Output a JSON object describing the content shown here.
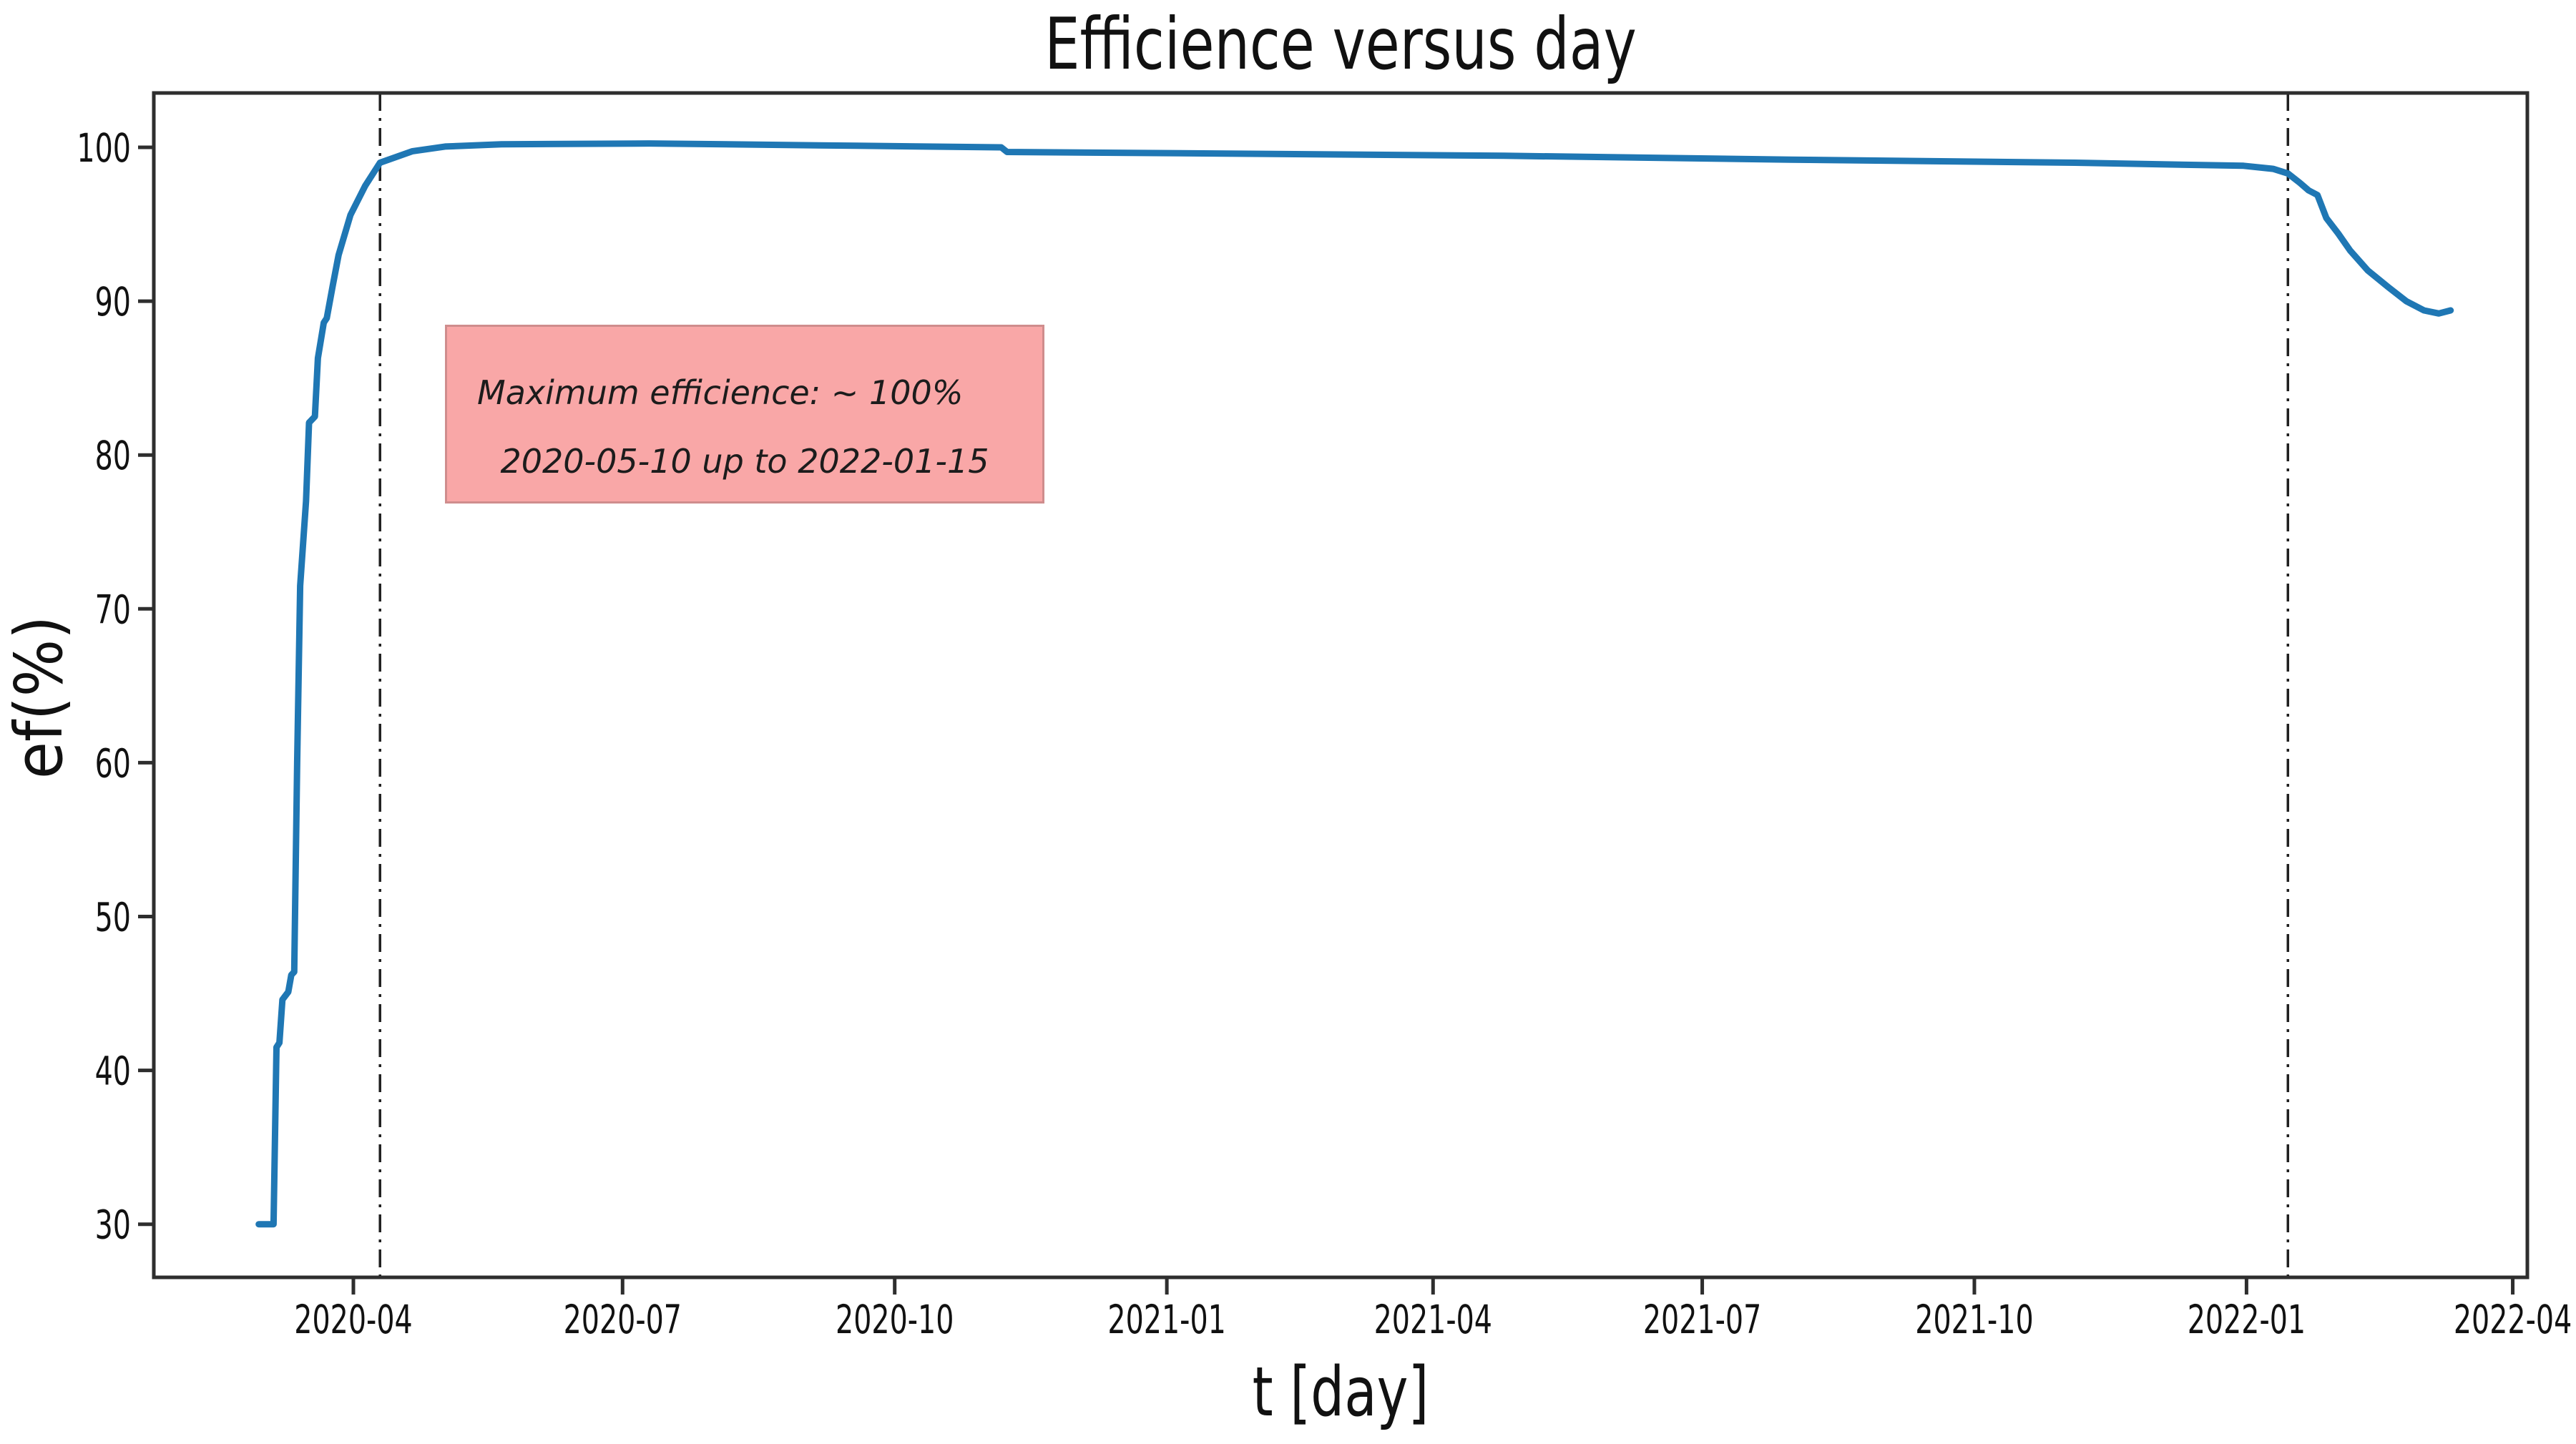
{
  "chart_data": {
    "type": "line",
    "title": "Efficience versus day",
    "xlabel": "t [day]",
    "ylabel": "ef(%)",
    "grid": false,
    "legend": "none",
    "ylim": [
      26.5,
      103.5
    ],
    "xlim": [
      "2020-01-25",
      "2022-04-08"
    ],
    "y_ticks": [
      30,
      40,
      50,
      60,
      70,
      80,
      90,
      100
    ],
    "x_ticks": [
      {
        "label": "2020-04",
        "date": "2020-04-01"
      },
      {
        "label": "2020-07",
        "date": "2020-07-01"
      },
      {
        "label": "2020-10",
        "date": "2020-10-01"
      },
      {
        "label": "2021-01",
        "date": "2021-01-01"
      },
      {
        "label": "2021-04",
        "date": "2021-04-01"
      },
      {
        "label": "2021-07",
        "date": "2021-07-01"
      },
      {
        "label": "2021-10",
        "date": "2021-10-01"
      },
      {
        "label": "2022-01",
        "date": "2022-01-01"
      },
      {
        "label": "2022-04",
        "date": "2022-04-01"
      }
    ],
    "vlines": [
      {
        "date": "2020-04-10",
        "style": "dashdot",
        "color": "#1f1f1f"
      },
      {
        "date": "2022-01-15",
        "style": "dashdot",
        "color": "#1f1f1f"
      }
    ],
    "series": [
      {
        "name": "efficiency",
        "color": "#1f77b4",
        "points": [
          [
            "2020-02-29",
            30.0
          ],
          [
            "2020-03-05",
            30.0
          ],
          [
            "2020-03-06",
            41.5
          ],
          [
            "2020-03-07",
            41.8
          ],
          [
            "2020-03-08",
            44.6
          ],
          [
            "2020-03-10",
            45.1
          ],
          [
            "2020-03-11",
            46.2
          ],
          [
            "2020-03-12",
            46.4
          ],
          [
            "2020-03-13",
            60.0
          ],
          [
            "2020-03-14",
            71.5
          ],
          [
            "2020-03-16",
            77.0
          ],
          [
            "2020-03-17",
            82.1
          ],
          [
            "2020-03-19",
            82.5
          ],
          [
            "2020-03-20",
            86.3
          ],
          [
            "2020-03-22",
            88.6
          ],
          [
            "2020-03-23",
            88.9
          ],
          [
            "2020-03-25",
            91.0
          ],
          [
            "2020-03-27",
            93.0
          ],
          [
            "2020-03-31",
            95.6
          ],
          [
            "2020-04-05",
            97.5
          ],
          [
            "2020-04-10",
            99.0
          ],
          [
            "2020-04-21",
            99.75
          ],
          [
            "2020-05-02",
            100.05
          ],
          [
            "2020-05-21",
            100.2
          ],
          [
            "2020-07-10",
            100.25
          ],
          [
            "2020-09-18",
            100.1
          ],
          [
            "2020-11-06",
            100.0
          ],
          [
            "2020-11-08",
            99.7
          ],
          [
            "2021-01-17",
            99.6
          ],
          [
            "2021-04-25",
            99.45
          ],
          [
            "2021-07-31",
            99.2
          ],
          [
            "2021-11-04",
            99.0
          ],
          [
            "2021-12-31",
            98.8
          ],
          [
            "2022-01-10",
            98.6
          ],
          [
            "2022-01-15",
            98.3
          ],
          [
            "2022-01-19",
            97.7
          ],
          [
            "2022-01-22",
            97.2
          ],
          [
            "2022-01-25",
            96.9
          ],
          [
            "2022-01-28",
            95.4
          ],
          [
            "2022-02-01",
            94.4
          ],
          [
            "2022-02-05",
            93.3
          ],
          [
            "2022-02-11",
            92.0
          ],
          [
            "2022-02-18",
            90.9
          ],
          [
            "2022-02-24",
            90.0
          ],
          [
            "2022-03-02",
            89.4
          ],
          [
            "2022-03-07",
            89.2
          ],
          [
            "2022-03-11",
            89.4
          ]
        ]
      }
    ],
    "annotation": {
      "line1": "Maximum efficience: ~ 100%",
      "line2": "2020-05-10 up to 2022-01-15",
      "fill_color": "#f9a7a7",
      "border_color": "#cf8d8d",
      "text_color": "#1c1c1c"
    },
    "colors": {
      "line": "#1f77b4",
      "spine": "#2e2e2e",
      "tick_text": "#111111",
      "background": "#ffffff"
    }
  }
}
